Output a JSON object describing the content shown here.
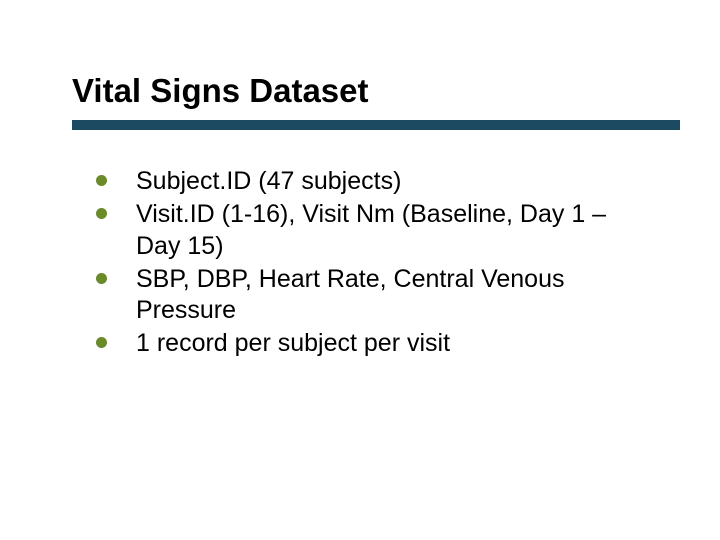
{
  "slide": {
    "title": "Vital Signs Dataset",
    "title_fontsize": 33,
    "title_color": "#000000",
    "title_weight": 700,
    "underline_color": "#1c4a60",
    "underline_height": 10,
    "background_color": "#ffffff",
    "bullet_color": "#6b8a2a",
    "bullet_diameter": 11,
    "body_fontsize": 25,
    "body_color": "#000000",
    "items": [
      "Subject.ID (47 subjects)",
      "Visit.ID (1-16), Visit Nm (Baseline, Day 1 – Day 15)",
      "SBP, DBP, Heart Rate, Central Venous Pressure",
      "1 record per subject per visit"
    ]
  }
}
